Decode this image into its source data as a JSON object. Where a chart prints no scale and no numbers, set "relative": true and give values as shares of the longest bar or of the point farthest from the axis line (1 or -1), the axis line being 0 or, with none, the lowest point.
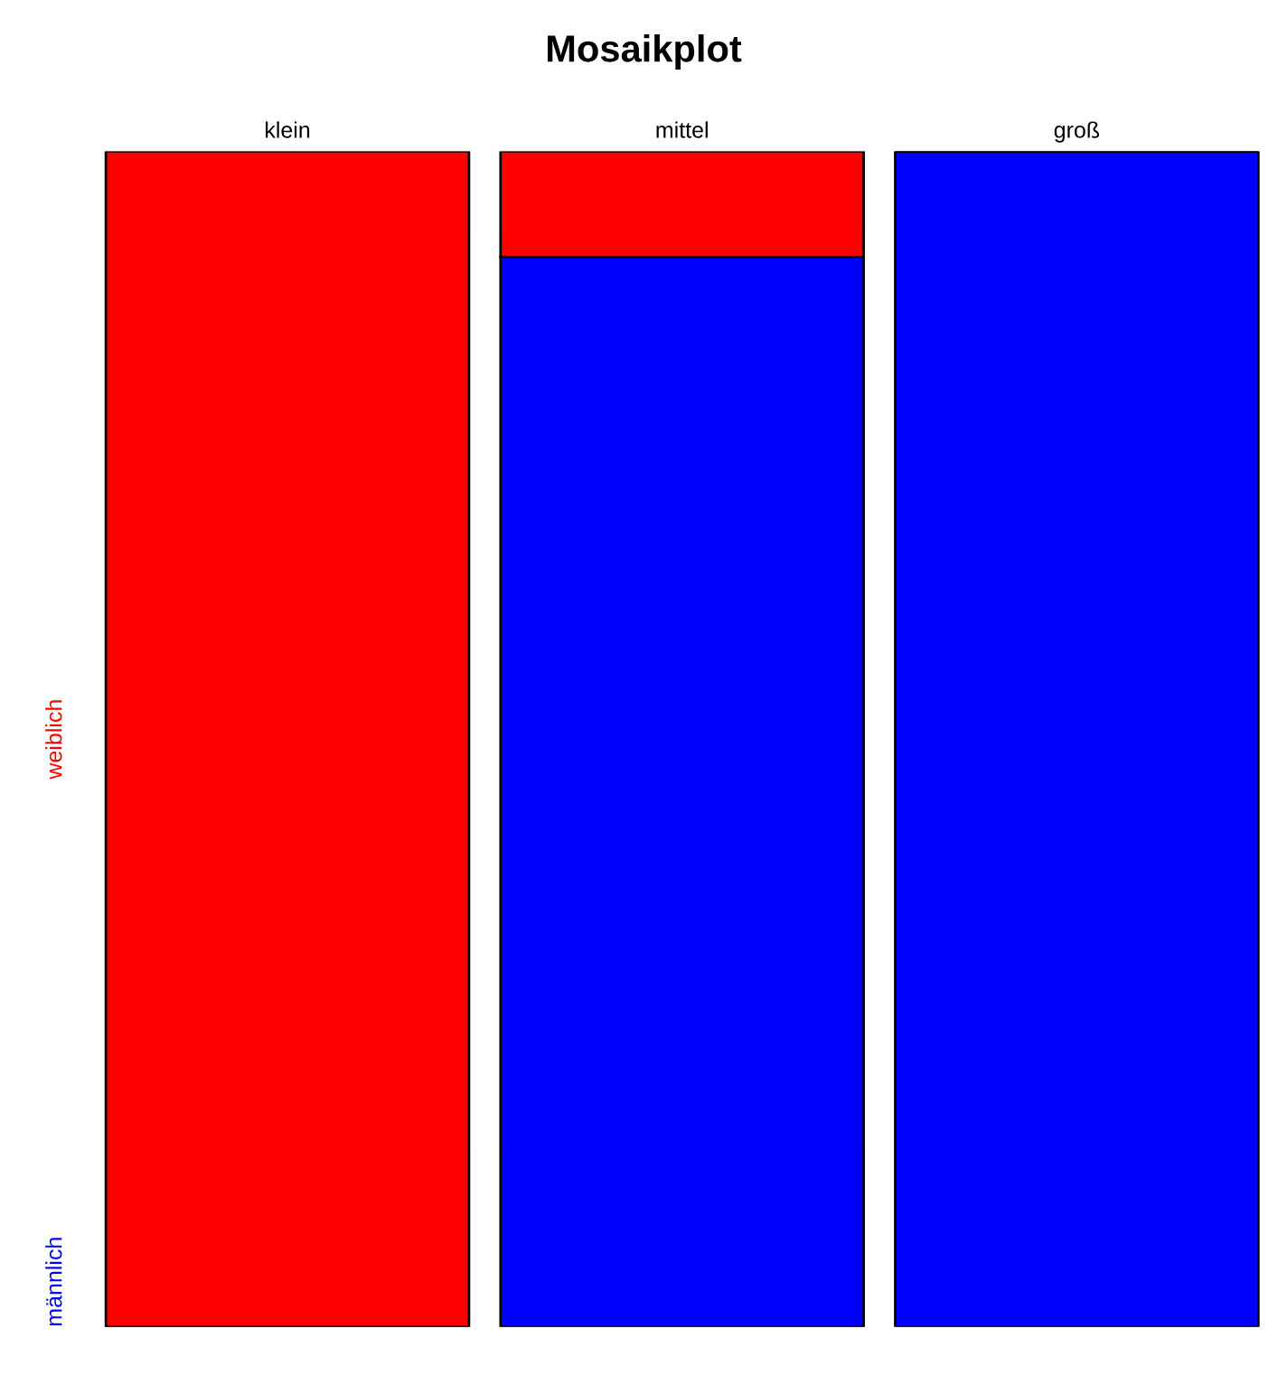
{
  "chart_data": {
    "type": "bar",
    "title": "Mosaikplot",
    "stacked": true,
    "relative": true,
    "legend": false,
    "categories": [
      "klein",
      "mittel",
      "groß"
    ],
    "series": [
      {
        "name": "männlich",
        "color": "#0000ff",
        "values": [
          0,
          0.91,
          1
        ]
      },
      {
        "name": "weiblich",
        "color": "#ff0000",
        "values": [
          1,
          0.09,
          0
        ]
      }
    ]
  }
}
